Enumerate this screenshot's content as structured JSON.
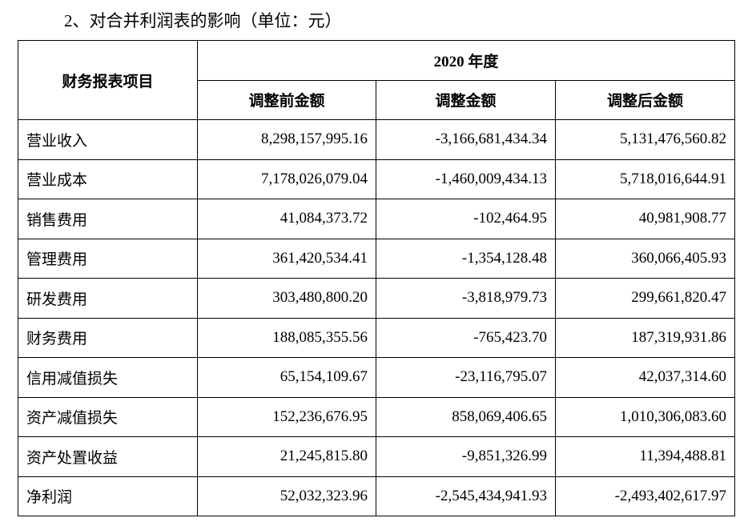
{
  "title": "2、对合并利润表的影响（单位：元）",
  "table": {
    "header": {
      "item": "财务报表项目",
      "period": "2020 年度",
      "columns": [
        "调整前金额",
        "调整金额",
        "调整后金额"
      ]
    },
    "rows": [
      [
        "营业收入",
        "8,298,157,995.16",
        "-3,166,681,434.34",
        "5,131,476,560.82"
      ],
      [
        "营业成本",
        "7,178,026,079.04",
        "-1,460,009,434.13",
        "5,718,016,644.91"
      ],
      [
        "销售费用",
        "41,084,373.72",
        "-102,464.95",
        "40,981,908.77"
      ],
      [
        "管理费用",
        "361,420,534.41",
        "-1,354,128.48",
        "360,066,405.93"
      ],
      [
        "研发费用",
        "303,480,800.20",
        "-3,818,979.73",
        "299,661,820.47"
      ],
      [
        "财务费用",
        "188,085,355.56",
        "-765,423.70",
        "187,319,931.86"
      ],
      [
        "信用减值损失",
        "65,154,109.67",
        "-23,116,795.07",
        "42,037,314.60"
      ],
      [
        "资产减值损失",
        "152,236,676.95",
        "858,069,406.65",
        "1,010,306,083.60"
      ],
      [
        "资产处置收益",
        "21,245,815.80",
        "-9,851,326.99",
        "11,394,488.81"
      ],
      [
        "净利润",
        "52,032,323.96",
        "-2,545,434,941.93",
        "-2,493,402,617.97"
      ]
    ]
  }
}
